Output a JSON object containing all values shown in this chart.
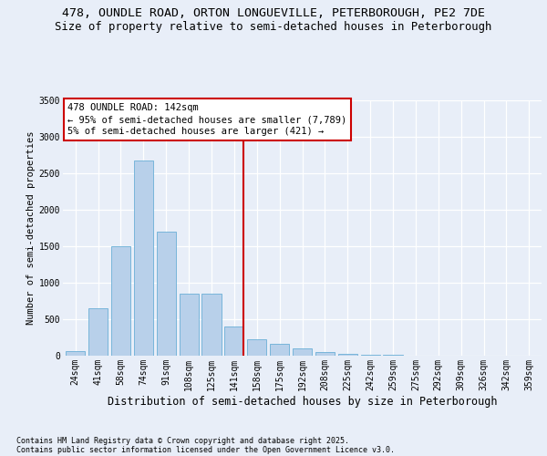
{
  "title1": "478, OUNDLE ROAD, ORTON LONGUEVILLE, PETERBOROUGH, PE2 7DE",
  "title2": "Size of property relative to semi-detached houses in Peterborough",
  "xlabel": "Distribution of semi-detached houses by size in Peterborough",
  "ylabel": "Number of semi-detached properties",
  "footnote1": "Contains HM Land Registry data © Crown copyright and database right 2025.",
  "footnote2": "Contains public sector information licensed under the Open Government Licence v3.0.",
  "bar_labels": [
    "24sqm",
    "41sqm",
    "58sqm",
    "74sqm",
    "91sqm",
    "108sqm",
    "125sqm",
    "141sqm",
    "158sqm",
    "175sqm",
    "192sqm",
    "208sqm",
    "225sqm",
    "242sqm",
    "259sqm",
    "275sqm",
    "292sqm",
    "309sqm",
    "326sqm",
    "342sqm",
    "359sqm"
  ],
  "bar_values": [
    65,
    650,
    1500,
    2680,
    1700,
    850,
    850,
    400,
    220,
    160,
    100,
    50,
    28,
    18,
    10,
    6,
    4,
    2,
    1,
    1,
    0
  ],
  "bar_color": "#b8d0ea",
  "bar_edge_color": "#6aafd6",
  "vline_index": 7,
  "vline_color": "#cc0000",
  "annotation_line1": "478 OUNDLE ROAD: 142sqm",
  "annotation_line2": "← 95% of semi-detached houses are smaller (7,789)",
  "annotation_line3": "5% of semi-detached houses are larger (421) →",
  "annotation_box_edgecolor": "#cc0000",
  "ylim_max": 3500,
  "yticks": [
    0,
    500,
    1000,
    1500,
    2000,
    2500,
    3000,
    3500
  ],
  "bg_color": "#e8eef8",
  "bar_width": 0.85,
  "title1_fontsize": 9.5,
  "title2_fontsize": 8.8,
  "xlabel_fontsize": 8.5,
  "ylabel_fontsize": 7.5,
  "tick_fontsize": 7,
  "footnote_fontsize": 6.0,
  "ann_fontsize": 7.5
}
